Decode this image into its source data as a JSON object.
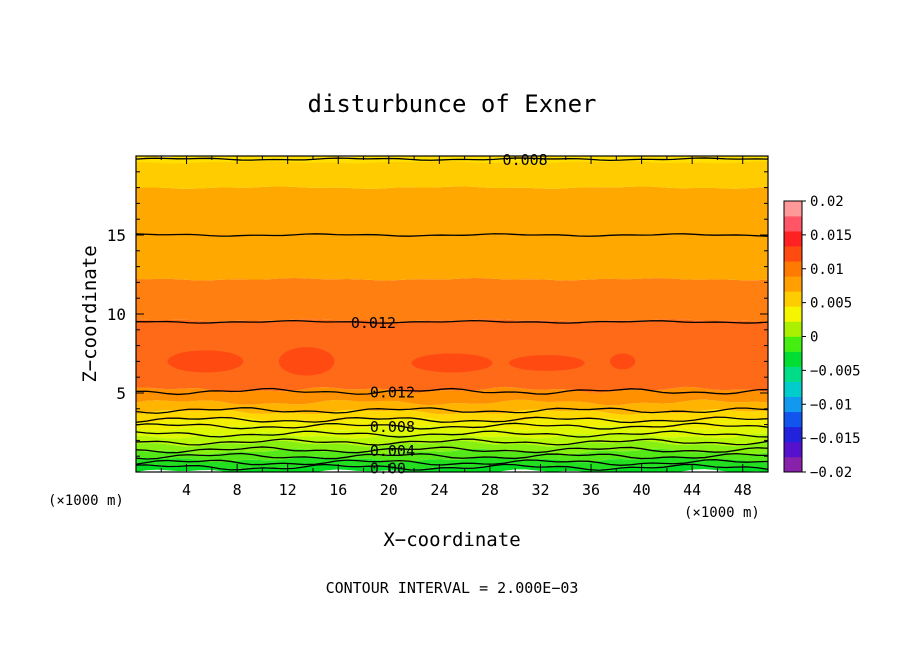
{
  "chart_data": {
    "type": "contour",
    "title": "disturbunce of Exner",
    "xlabel": "X−coordinate",
    "ylabel": "Z−coordinate",
    "x_unit": "(×1000 m)",
    "x_unit_right": "(×1000 m)",
    "footer": "CONTOUR INTERVAL = 2.000E−03",
    "xlim": [
      0,
      50
    ],
    "ylim": [
      0,
      20
    ],
    "x_ticks": [
      4,
      8,
      12,
      16,
      20,
      24,
      28,
      32,
      36,
      40,
      44,
      48
    ],
    "x_tick_labels": [
      "4",
      "8",
      "12",
      "16",
      "20",
      "24",
      "28",
      "32",
      "36",
      "40",
      "44",
      "48"
    ],
    "y_ticks": [
      5,
      10,
      15
    ],
    "y_tick_labels": [
      "5",
      "10",
      "15"
    ],
    "bands": [
      {
        "z0": 0.0,
        "z1": 0.35,
        "color": "#00dd22"
      },
      {
        "z0": 0.35,
        "z1": 0.8,
        "color": "#22e020"
      },
      {
        "z0": 0.8,
        "z1": 1.3,
        "color": "#55e818"
      },
      {
        "z0": 1.3,
        "z1": 1.8,
        "color": "#88f010"
      },
      {
        "z0": 1.8,
        "z1": 2.3,
        "color": "#bbf808"
      },
      {
        "z0": 2.3,
        "z1": 2.8,
        "color": "#ddf800"
      },
      {
        "z0": 2.8,
        "z1": 3.3,
        "color": "#f2f000"
      },
      {
        "z0": 3.3,
        "z1": 3.8,
        "color": "#ffd800"
      },
      {
        "z0": 3.8,
        "z1": 4.4,
        "color": "#ffb400"
      },
      {
        "z0": 4.4,
        "z1": 5.2,
        "color": "#ff9000"
      },
      {
        "z0": 5.2,
        "z1": 9.6,
        "color": "#ff6a18"
      },
      {
        "z0": 9.6,
        "z1": 12.2,
        "color": "#ff8010"
      },
      {
        "z0": 12.2,
        "z1": 18.0,
        "color": "#ffa800"
      },
      {
        "z0": 18.0,
        "z1": 20.0,
        "color": "#ffcc00"
      },
      {
        "z0": 19.6,
        "z1": 20.0,
        "color": "#ffe000"
      }
    ],
    "contours": [
      {
        "level": "0.008",
        "z": 19.8,
        "label_x": 29.0
      },
      {
        "level": "",
        "z": 15.0,
        "label_x": null
      },
      {
        "level": "0.012",
        "z": 9.5,
        "label_x": 17.0
      },
      {
        "level": "0.012",
        "z": 5.1,
        "label_x": 18.5
      },
      {
        "level": "",
        "z": 3.9,
        "label_x": null
      },
      {
        "level": "",
        "z": 3.3,
        "label_x": null
      },
      {
        "level": "0.008",
        "z": 2.9,
        "label_x": 18.5
      },
      {
        "level": "",
        "z": 2.4,
        "label_x": null
      },
      {
        "level": "",
        "z": 1.9,
        "label_x": null
      },
      {
        "level": "0.004",
        "z": 1.4,
        "label_x": 18.5
      },
      {
        "level": "",
        "z": 1.0,
        "label_x": null
      },
      {
        "level": "",
        "z": 0.6,
        "label_x": null
      },
      {
        "level": "0.00",
        "z": 0.3,
        "label_x": 18.5
      }
    ],
    "colorbar": {
      "min": -0.02,
      "max": 0.02,
      "colors": [
        "#8822aa",
        "#5511cc",
        "#2222dd",
        "#1155ee",
        "#1199f0",
        "#00cccc",
        "#00dd88",
        "#00dd33",
        "#44ee11",
        "#aaf000",
        "#f5f500",
        "#ffcc00",
        "#ffa000",
        "#ff7a00",
        "#ff4a10",
        "#ff2222",
        "#ff5566",
        "#ff9999"
      ],
      "tick_values": [
        0.02,
        0.015,
        0.01,
        0.005,
        0,
        -0.005,
        -0.01,
        -0.015,
        -0.02
      ],
      "tick_labels": [
        "0.02",
        "0.015",
        "0.01",
        "0.005",
        "0",
        "−0.005",
        "−0.01",
        "−0.015",
        "−0.02"
      ]
    }
  }
}
